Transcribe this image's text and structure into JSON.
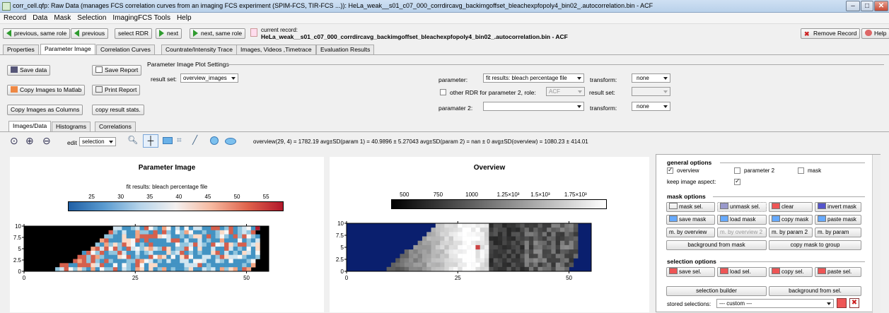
{
  "window": {
    "title": "corr_cell.qfp: Raw Data (manages FCS correlation curves from an imaging FCS experiment (SPIM-FCS, TIR-FCS ...)): HeLa_weak__s01_c07_000_corrdircavg_backimgoffset_bleachexpfopoly4_bin02_.autocorrelation.bin - ACF",
    "minimize": "–",
    "maximize": "□",
    "close": "✕"
  },
  "menu": [
    "Record",
    "Data",
    "Mask",
    "Selection",
    "ImagingFCS Tools",
    "Help"
  ],
  "toolbar": {
    "prev_same_role": "previous, same role",
    "previous": "previous",
    "select_rdr": "select RDR",
    "next": "next",
    "next_same_role": "next, same role",
    "current_record_label": "current record:",
    "current_record_value": "HeLa_weak__s01_c07_000_corrdircavg_backimgoffset_bleachexpfopoly4_bin02_.autocorrelation.bin - ACF",
    "remove_record": "Remove Record",
    "help": "Help"
  },
  "tabs": [
    "Properties",
    "Parameter Image",
    "Correlation Curves",
    "Countrate/Intensity Trace",
    "Images, Videos ,Timetrace",
    "Evaluation Results"
  ],
  "actions": {
    "save_data": "Save data",
    "save_report": "Save Report",
    "copy_images_matlab": "Copy Images to Matlab",
    "print_report": "Print Report",
    "copy_images_columns": "Copy Images as Columns",
    "copy_result_stats": "copy result stats."
  },
  "settings": {
    "group_title": "Parameter Image Plot Settings",
    "result_set_label": "result set:",
    "result_set_value": "overview_images",
    "parameter_label": "parameter:",
    "parameter_value": "fit results: bleach percentage file",
    "transform_label": "transform:",
    "transform_value": "none",
    "other_rdr_label": "other RDR for parameter 2, role:",
    "other_rdr_role": "ACF",
    "result_set2_label": "result set:",
    "result_set2_value": "",
    "parameter2_label": "paramater 2:",
    "parameter2_value": "",
    "transform2_label": "transform:",
    "transform2_value": "none"
  },
  "subtabs": [
    "Images/Data",
    "Histograms",
    "Correlations"
  ],
  "plot_toolbar": {
    "edit_label": "edit",
    "edit_value": "selection",
    "stats": "overview(29, 4) = 1782.19  avg±SD(param 1) = 40.9896 ± 5.27043  avg±SD(param 2) = nan ± 0    avg±SD(overview) = 1080.23 ± 414.01"
  },
  "param_plot": {
    "title": "Parameter Image",
    "colorbar_label": "fit results: bleach percentage file",
    "colorbar_ticks": [
      "25",
      "30",
      "35",
      "40",
      "45",
      "50",
      "55"
    ],
    "y_ticks": [
      "10",
      "7.5",
      "5",
      "2.5",
      "0"
    ],
    "x_ticks": [
      "0",
      "25",
      "50"
    ]
  },
  "overview_plot": {
    "title": "Overview",
    "colorbar_ticks": [
      "500",
      "750",
      "1000",
      "1.25×10³",
      "1.5×10³",
      "1.75×10³"
    ],
    "y_ticks": [
      "10",
      "7.5",
      "5",
      "2.5",
      "0"
    ],
    "x_ticks": [
      "0",
      "25",
      "50"
    ]
  },
  "side": {
    "general_title": "general options",
    "overview": "overview",
    "parameter2": "parameter 2",
    "mask": "mask",
    "keep_aspect": "keep image aspect:",
    "mask_title": "mask options",
    "mask_sel": "mask sel.",
    "unmask_sel": "unmask sel.",
    "clear": "clear",
    "invert_mask": "invert mask",
    "save_mask": "save mask",
    "load_mask": "load mask",
    "copy_mask": "copy mask",
    "paste_mask": "paste mask",
    "m_by_overview": "m. by overview",
    "m_by_overview2": "m. by overview 2",
    "m_by_param2": "m. by param 2",
    "m_by_param": "m. by param",
    "bg_from_mask": "background from mask",
    "copy_mask_group": "copy mask to group",
    "selection_title": "selection options",
    "save_sel": "save sel.",
    "load_sel": "load sel.",
    "copy_sel": "copy sel.",
    "paste_sel": "paste sel.",
    "selection_builder": "selection builder",
    "bg_from_sel": "background from sel.",
    "stored_selections": "stored selections:",
    "stored_value": "--- custom ---"
  },
  "colors": {
    "accent": "#2e9b2e",
    "mask_bg": "#000000",
    "overview_bg": "#0a1f6e"
  }
}
